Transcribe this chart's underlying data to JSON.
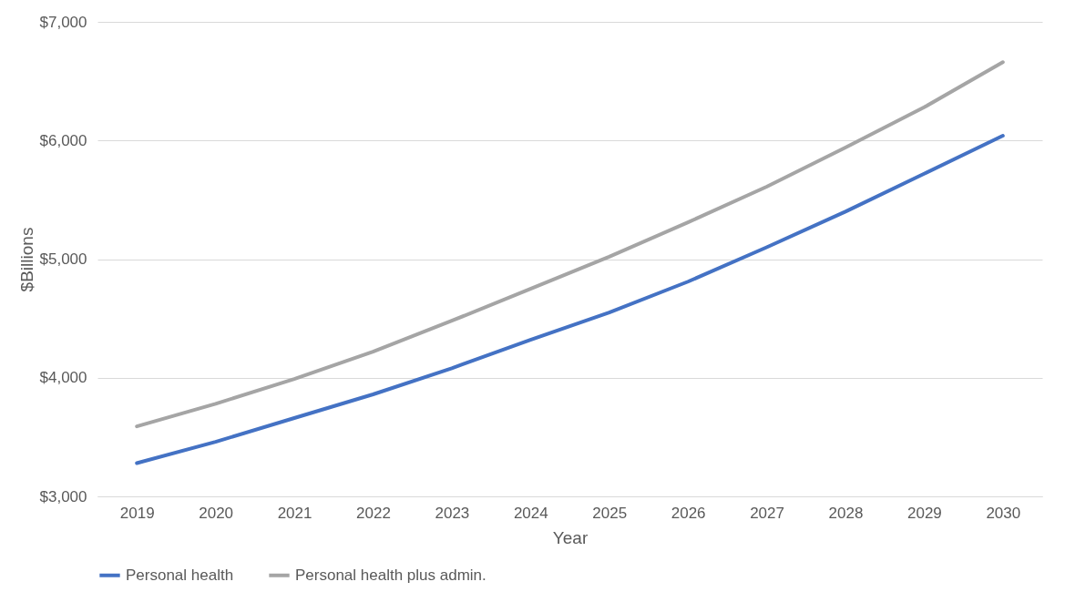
{
  "chart_data": {
    "type": "line",
    "xlabel": "Year",
    "ylabel": "$Billions",
    "categories": [
      "2019",
      "2020",
      "2021",
      "2022",
      "2023",
      "2024",
      "2025",
      "2026",
      "2027",
      "2028",
      "2029",
      "2030"
    ],
    "series": [
      {
        "name": "Personal health",
        "color": "#4472c4",
        "values": [
          3280,
          3460,
          3660,
          3860,
          4080,
          4320,
          4550,
          4810,
          5100,
          5400,
          5720,
          6040
        ]
      },
      {
        "name": "Personal health plus admin.",
        "color": "#a5a5a5",
        "values": [
          3590,
          3780,
          3990,
          4220,
          4480,
          4750,
          5020,
          5310,
          5610,
          5940,
          6280,
          6660
        ]
      }
    ],
    "ylim": [
      3000,
      7000
    ],
    "yticks": [
      {
        "value": 3000,
        "label": "$3,000"
      },
      {
        "value": 4000,
        "label": "$4,000"
      },
      {
        "value": 5000,
        "label": "$5,000"
      },
      {
        "value": 6000,
        "label": "$6,000"
      },
      {
        "value": 7000,
        "label": "$7,000"
      }
    ],
    "grid": "y",
    "legend": "bottom",
    "marker": "none",
    "line_style": "solid"
  }
}
